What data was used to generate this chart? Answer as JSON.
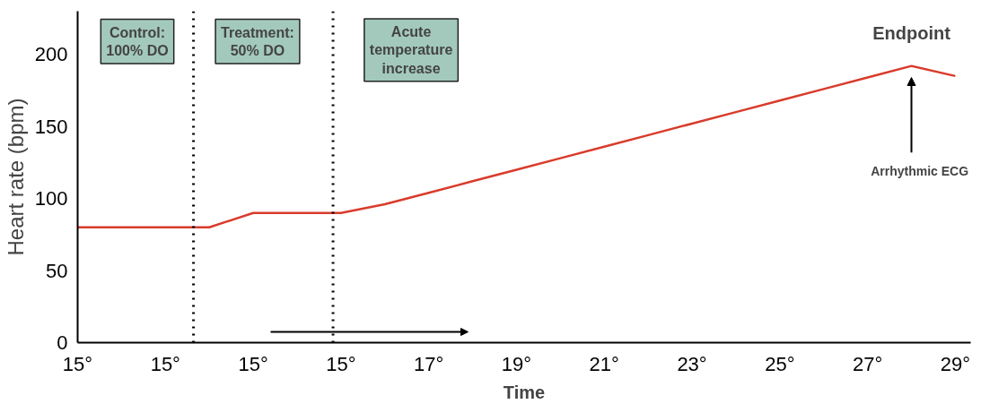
{
  "chart_data": {
    "type": "line",
    "ylabel": "Heart rate (bpm)",
    "xlabel": "Time",
    "categories": [
      "15°",
      null,
      "15°",
      null,
      "15°",
      null,
      "15°",
      null,
      "17°",
      null,
      "19°",
      null,
      "21°",
      null,
      "23°",
      null,
      "25°",
      null,
      "27°",
      null,
      "29°"
    ],
    "series": [
      {
        "color": "#d93b2b",
        "values": [
          80,
          80,
          80,
          80,
          90,
          90,
          90,
          96,
          104,
          112,
          120,
          128,
          136,
          144,
          152,
          160,
          168,
          176,
          184,
          192,
          185
        ]
      }
    ],
    "ylim": [
      0,
      230
    ],
    "yticks": [
      0,
      50,
      100,
      150,
      200
    ],
    "annotations": [
      "Control:\n100% DO",
      "Treatment:\n50% DO",
      "Acute\ntemperature\nincrease",
      "Endpoint",
      "Arrhythmic ECG"
    ],
    "grid": false,
    "line_style": "solid",
    "marker": "none"
  }
}
